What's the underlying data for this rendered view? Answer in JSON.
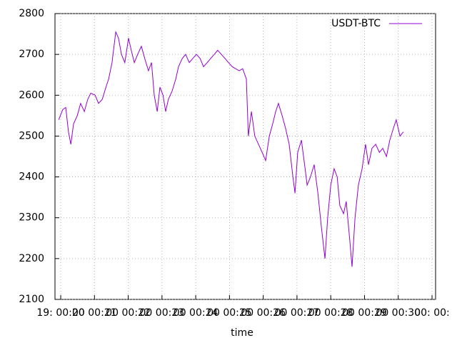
{
  "chart_data": {
    "type": "line",
    "xlabel": "time",
    "x": [
      19.94,
      20.06,
      20.15,
      20.23,
      20.3,
      20.38,
      20.49,
      20.59,
      20.7,
      20.8,
      20.89,
      21.02,
      21.12,
      21.23,
      21.34,
      21.42,
      21.52,
      21.63,
      21.71,
      21.8,
      21.9,
      22.01,
      22.09,
      22.18,
      22.28,
      22.39,
      22.49,
      22.6,
      22.69,
      22.77,
      22.86,
      22.94,
      23.03,
      23.11,
      23.19,
      23.3,
      23.41,
      23.49,
      23.6,
      23.7,
      23.81,
      23.91,
      24.02,
      24.13,
      24.23,
      24.34,
      24.44,
      24.55,
      24.65,
      24.76,
      24.87,
      24.97,
      25.08,
      25.18,
      25.29,
      25.39,
      25.5,
      25.56,
      25.65,
      25.75,
      25.86,
      25.97,
      26.07,
      26.18,
      26.28,
      26.37,
      26.45,
      26.56,
      26.66,
      26.77,
      26.88,
      26.94,
      27.02,
      27.13,
      27.24,
      27.3,
      27.4,
      27.51,
      27.62,
      27.72,
      27.83,
      27.91,
      28.0,
      28.1,
      28.19,
      28.27,
      28.38,
      28.46,
      28.57,
      28.63,
      28.72,
      28.82,
      28.93,
      29.03,
      29.12,
      29.22,
      29.33,
      29.44,
      29.54,
      29.65,
      29.75,
      29.86,
      29.94,
      30.05,
      30.15
    ],
    "series": [
      {
        "name": "USDT-BTC",
        "color": "#9400d3",
        "values": [
          2540,
          2565,
          2570,
          2510,
          2480,
          2530,
          2550,
          2580,
          2560,
          2590,
          2605,
          2600,
          2580,
          2590,
          2620,
          2640,
          2680,
          2755,
          2740,
          2700,
          2680,
          2740,
          2710,
          2680,
          2700,
          2720,
          2690,
          2660,
          2680,
          2600,
          2560,
          2620,
          2600,
          2560,
          2590,
          2610,
          2640,
          2670,
          2690,
          2700,
          2680,
          2690,
          2700,
          2690,
          2670,
          2680,
          2690,
          2700,
          2710,
          2700,
          2690,
          2680,
          2670,
          2665,
          2660,
          2665,
          2640,
          2500,
          2560,
          2500,
          2480,
          2460,
          2440,
          2500,
          2530,
          2560,
          2580,
          2550,
          2520,
          2480,
          2400,
          2360,
          2460,
          2490,
          2420,
          2380,
          2400,
          2430,
          2360,
          2280,
          2200,
          2300,
          2380,
          2420,
          2400,
          2330,
          2310,
          2340,
          2240,
          2180,
          2300,
          2380,
          2420,
          2480,
          2430,
          2470,
          2480,
          2460,
          2470,
          2450,
          2490,
          2520,
          2540,
          2500,
          2510
        ]
      }
    ],
    "xlim": [
      19.83,
      31.106
    ],
    "xticks": [
      {
        "value": 20,
        "label": "19: 00:20"
      },
      {
        "value": 21,
        "label": "00 00:21"
      },
      {
        "value": 22,
        "label": "00 00:22"
      },
      {
        "value": 23,
        "label": "00 00:23"
      },
      {
        "value": 24,
        "label": "00 00:24"
      },
      {
        "value": 25,
        "label": "00 00:25"
      },
      {
        "value": 26,
        "label": "00 00:26"
      },
      {
        "value": 27,
        "label": "00 00:27"
      },
      {
        "value": 28,
        "label": "00 00:28"
      },
      {
        "value": 29,
        "label": "00 00:29"
      },
      {
        "value": 30,
        "label": "00 00:30"
      },
      {
        "value": 31,
        "label": "00: 00:"
      }
    ],
    "ylim": [
      2100,
      2800
    ],
    "yticks": [
      2100,
      2200,
      2300,
      2400,
      2500,
      2600,
      2700,
      2800
    ],
    "grid": true,
    "legend": "top-right"
  }
}
